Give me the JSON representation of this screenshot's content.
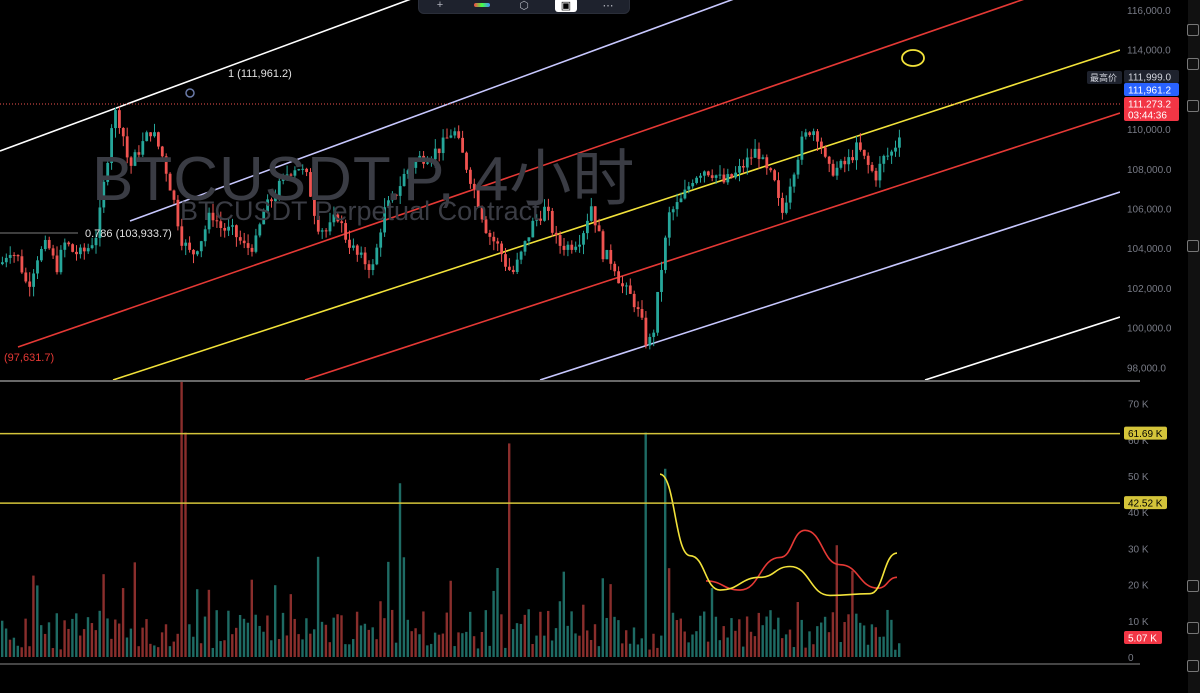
{
  "symbol_watermark": "BTCUSDT.P, 4小时",
  "symbol_description": "BTCUSDT Perpetual Contract",
  "price_axis": {
    "ticks": [
      "116,000.0",
      "114,000.0",
      "112,000.0",
      "110,000.0",
      "108,000.0",
      "106,000.0",
      "104,000.0",
      "102,000.0",
      "100,000.0",
      "98,000.0"
    ],
    "high_label": "最高价",
    "high_value": "111,999.0",
    "fib_level_value": "111,961.2",
    "last_price": "111,273.2",
    "countdown": "03:44:36",
    "colors": {
      "high": "#1e222d",
      "fib": "#2962ff",
      "last": "#f23645"
    }
  },
  "fib_labels": {
    "level_1": "1 (111,961.2)",
    "level_0786": "0.786 (103,933.7)",
    "level_0": "(97,631.7)"
  },
  "volume_axis": {
    "ticks": [
      "70 K",
      "60 K",
      "50 K",
      "40 K",
      "30 K",
      "20 K",
      "10 K",
      "0"
    ],
    "hline_1": "61.69 K",
    "hline_2": "42.52 K",
    "current_volume": "5.07 K"
  },
  "toolbar": {
    "icons": [
      "add-indicator-icon",
      "color-palette-icon",
      "template-icon",
      "screenshot-icon",
      "more-icon"
    ]
  },
  "colors": {
    "background": "#000000",
    "up": "#26a69a",
    "down": "#ef5350",
    "channel_mid": "#f2e23a",
    "channel_inner": "#e53935",
    "channel_outer": "#c8c8ff",
    "channel_far": "#ffffff",
    "volume_hline": "#d4c43a"
  },
  "chart_data": {
    "type": "candlestick",
    "timeframe": "4小时",
    "symbol": "BTCUSDT.P",
    "ylim": [
      97500,
      116500
    ],
    "last_price": 111273.2,
    "session_high": 111999.0,
    "x_range_candles": 230,
    "price_knots": [
      [
        0,
        103200
      ],
      [
        8,
        104000
      ],
      [
        18,
        103400
      ],
      [
        26,
        102000
      ],
      [
        36,
        103600
      ],
      [
        46,
        104200
      ],
      [
        55,
        103000
      ],
      [
        64,
        104300
      ],
      [
        72,
        103800
      ],
      [
        80,
        103700
      ],
      [
        88,
        104100
      ],
      [
        96,
        104800
      ],
      [
        106,
        108500
      ],
      [
        112,
        111000
      ],
      [
        120,
        110200
      ],
      [
        128,
        108000
      ],
      [
        138,
        109000
      ],
      [
        150,
        110000
      ],
      [
        162,
        108500
      ],
      [
        172,
        106500
      ],
      [
        180,
        104500
      ],
      [
        190,
        103600
      ],
      [
        200,
        104500
      ],
      [
        210,
        105800
      ],
      [
        220,
        105000
      ],
      [
        232,
        104800
      ],
      [
        244,
        104000
      ],
      [
        254,
        104200
      ],
      [
        262,
        105800
      ],
      [
        272,
        106600
      ],
      [
        286,
        107800
      ],
      [
        296,
        108200
      ],
      [
        306,
        107500
      ],
      [
        316,
        105200
      ],
      [
        326,
        104800
      ],
      [
        336,
        105700
      ],
      [
        344,
        104600
      ],
      [
        356,
        103600
      ],
      [
        372,
        103000
      ],
      [
        382,
        105800
      ],
      [
        392,
        106500
      ],
      [
        404,
        107800
      ],
      [
        416,
        108500
      ],
      [
        428,
        108700
      ],
      [
        440,
        109100
      ],
      [
        452,
        110000
      ],
      [
        466,
        108000
      ],
      [
        476,
        106500
      ],
      [
        486,
        104800
      ],
      [
        498,
        104000
      ],
      [
        506,
        103000
      ],
      [
        512,
        102800
      ],
      [
        520,
        103700
      ],
      [
        532,
        105300
      ],
      [
        544,
        106000
      ],
      [
        556,
        104200
      ],
      [
        568,
        104100
      ],
      [
        580,
        104600
      ],
      [
        590,
        106200
      ],
      [
        602,
        103700
      ],
      [
        612,
        103300
      ],
      [
        620,
        102100
      ],
      [
        632,
        101400
      ],
      [
        640,
        100300
      ],
      [
        646,
        99000
      ],
      [
        652,
        99800
      ],
      [
        660,
        103000
      ],
      [
        668,
        105700
      ],
      [
        680,
        106400
      ],
      [
        692,
        107600
      ],
      [
        702,
        108000
      ],
      [
        712,
        107800
      ],
      [
        722,
        107300
      ],
      [
        734,
        107700
      ],
      [
        746,
        108400
      ],
      [
        756,
        109000
      ],
      [
        764,
        107900
      ],
      [
        772,
        107500
      ],
      [
        780,
        105600
      ],
      [
        790,
        107600
      ],
      [
        800,
        109300
      ],
      [
        810,
        110100
      ],
      [
        818,
        109600
      ],
      [
        826,
        107900
      ],
      [
        836,
        108000
      ],
      [
        846,
        108300
      ],
      [
        856,
        109100
      ],
      [
        866,
        108200
      ],
      [
        874,
        107600
      ],
      [
        882,
        108500
      ],
      [
        890,
        108800
      ],
      [
        897,
        109500
      ],
      [
        902,
        111300
      ]
    ],
    "volume_peaks": [
      [
        179,
        76000
      ],
      [
        186,
        62000
      ],
      [
        398,
        48000
      ],
      [
        507,
        59000
      ],
      [
        645,
        62000
      ],
      [
        663,
        52000
      ]
    ],
    "volume_ylim": [
      0,
      75000
    ],
    "volume_hlines": [
      61690,
      42520
    ],
    "volume_current": 5070,
    "volume_ma_yellow": [
      [
        660,
        50500
      ],
      [
        690,
        28000
      ],
      [
        720,
        18500
      ],
      [
        760,
        22000
      ],
      [
        790,
        25000
      ],
      [
        830,
        17000
      ],
      [
        870,
        17500
      ],
      [
        897,
        28700
      ]
    ],
    "volume_ma_red": [
      [
        706,
        21000
      ],
      [
        740,
        18500
      ],
      [
        780,
        27500
      ],
      [
        805,
        35000
      ],
      [
        840,
        25500
      ],
      [
        878,
        19000
      ],
      [
        897,
        22000
      ]
    ],
    "channels": [
      {
        "name": "outer-upper",
        "color": "#ffffff",
        "points": [
          [
            0,
            151
          ],
          [
            430,
            -8
          ]
        ]
      },
      {
        "name": "upper",
        "color": "#c8c8ff",
        "points": [
          [
            130,
            221
          ],
          [
            840,
            -40
          ]
        ]
      },
      {
        "name": "inner-upper",
        "color": "#e53935",
        "points": [
          [
            18,
            347
          ],
          [
            1120,
            -34
          ]
        ]
      },
      {
        "name": "mid",
        "color": "#f2e23a",
        "points": [
          [
            113,
            380
          ],
          [
            1120,
            50
          ]
        ]
      },
      {
        "name": "inner-lower",
        "color": "#e53935",
        "points": [
          [
            305,
            380
          ],
          [
            1120,
            113
          ]
        ]
      },
      {
        "name": "lower",
        "color": "#c8c8ff",
        "points": [
          [
            540,
            380
          ],
          [
            1120,
            192
          ]
        ]
      },
      {
        "name": "outer-lower",
        "color": "#ffffff",
        "points": [
          [
            925,
            380
          ],
          [
            1120,
            317
          ]
        ]
      }
    ]
  }
}
